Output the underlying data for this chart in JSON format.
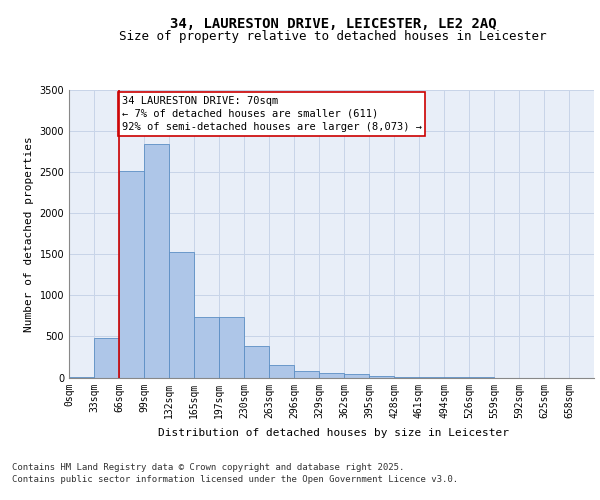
{
  "title_line1": "34, LAURESTON DRIVE, LEICESTER, LE2 2AQ",
  "title_line2": "Size of property relative to detached houses in Leicester",
  "xlabel": "Distribution of detached houses by size in Leicester",
  "ylabel": "Number of detached properties",
  "bar_labels": [
    "0sqm",
    "33sqm",
    "66sqm",
    "99sqm",
    "132sqm",
    "165sqm",
    "197sqm",
    "230sqm",
    "263sqm",
    "296sqm",
    "329sqm",
    "362sqm",
    "395sqm",
    "428sqm",
    "461sqm",
    "494sqm",
    "526sqm",
    "559sqm",
    "592sqm",
    "625sqm",
    "658sqm"
  ],
  "bar_values": [
    10,
    480,
    2510,
    2840,
    1530,
    740,
    740,
    380,
    155,
    75,
    60,
    40,
    20,
    5,
    2,
    1,
    1,
    0,
    0,
    0,
    0
  ],
  "bar_color": "#aec6e8",
  "bar_edge_color": "#5b8ec4",
  "grid_color": "#c8d4e8",
  "background_color": "#e8eef8",
  "ylim": [
    0,
    3500
  ],
  "yticks": [
    0,
    500,
    1000,
    1500,
    2000,
    2500,
    3000,
    3500
  ],
  "property_bin_index": 2,
  "vline_color": "#cc0000",
  "annotation_text": "34 LAURESTON DRIVE: 70sqm\n← 7% of detached houses are smaller (611)\n92% of semi-detached houses are larger (8,073) →",
  "annotation_box_color": "#ffffff",
  "annotation_box_edge": "#cc0000",
  "footer_line1": "Contains HM Land Registry data © Crown copyright and database right 2025.",
  "footer_line2": "Contains public sector information licensed under the Open Government Licence v3.0.",
  "title_fontsize": 10,
  "subtitle_fontsize": 9,
  "axis_label_fontsize": 8,
  "tick_fontsize": 7,
  "annotation_fontsize": 7.5,
  "footer_fontsize": 6.5
}
